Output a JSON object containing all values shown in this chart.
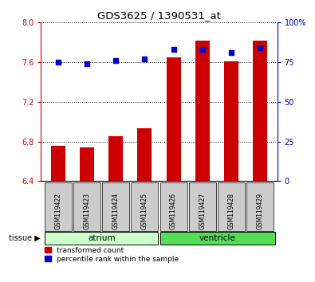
{
  "title": "GDS3625 / 1390531_at",
  "samples": [
    "GSM119422",
    "GSM119423",
    "GSM119424",
    "GSM119425",
    "GSM119426",
    "GSM119427",
    "GSM119428",
    "GSM119429"
  ],
  "red_values": [
    6.76,
    6.74,
    6.85,
    6.93,
    7.65,
    7.82,
    7.61,
    7.82
  ],
  "blue_values": [
    75,
    74,
    76,
    77,
    83,
    83,
    81,
    84
  ],
  "ylim_left": [
    6.4,
    8.0
  ],
  "ylim_right": [
    0,
    100
  ],
  "yticks_left": [
    6.4,
    6.8,
    7.2,
    7.6,
    8.0
  ],
  "yticks_right": [
    0,
    25,
    50,
    75,
    100
  ],
  "yticklabels_right": [
    "0",
    "25",
    "50",
    "75",
    "100%"
  ],
  "base_value": 6.4,
  "atrium_color": "#ccffcc",
  "ventricle_color": "#55dd55",
  "label_box_color": "#cccccc",
  "red_color": "#cc0000",
  "blue_color": "#0000cc",
  "tissue_label": "tissue",
  "atrium_label": "atrium",
  "ventricle_label": "ventricle",
  "legend_red": "transformed count",
  "legend_blue": "percentile rank within the sample",
  "bar_width": 0.5
}
